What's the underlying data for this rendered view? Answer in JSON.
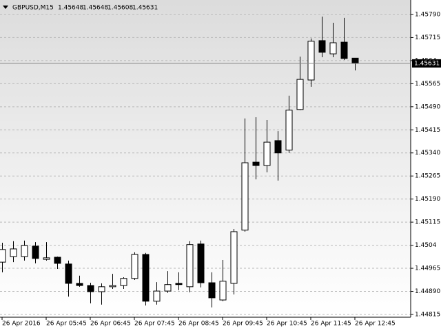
{
  "chart_data": {
    "type": "candlestick",
    "title": "GBPUSD,M15",
    "categories": [
      "26 Apr 2016",
      null,
      null,
      null,
      "26 Apr 05:45",
      null,
      null,
      null,
      "26 Apr 06:45",
      null,
      null,
      null,
      "26 Apr 07:45",
      null,
      null,
      null,
      "26 Apr 08:45",
      null,
      null,
      null,
      "26 Apr 09:45",
      null,
      null,
      null,
      "26 Apr 10:45",
      null,
      null,
      null,
      "26 Apr 11:45",
      null,
      null,
      null,
      "26 Apr 12:45"
    ],
    "open": [
      1.44985,
      1.45003,
      1.45003,
      1.45037,
      1.44994,
      1.45001,
      1.44979,
      1.44916,
      1.44909,
      1.44889,
      1.44905,
      1.44909,
      1.44932,
      1.4501,
      1.44858,
      1.44891,
      1.44916,
      1.44905,
      1.45044,
      1.44918,
      1.44862,
      1.44916,
      1.45089,
      1.4531,
      1.45299,
      1.4538,
      1.45349,
      1.45481,
      1.45577,
      1.45705,
      1.45662,
      1.457,
      1.45648
    ],
    "high": [
      1.45048,
      1.45053,
      1.45055,
      1.4505,
      1.4505,
      1.45003,
      1.4499,
      1.44941,
      1.44918,
      1.44916,
      1.44947,
      1.44936,
      1.45017,
      1.45015,
      1.4492,
      1.44956,
      1.44952,
      1.45053,
      1.45055,
      1.44952,
      1.44992,
      1.45093,
      1.45452,
      1.45456,
      1.45447,
      1.45411,
      1.45526,
      1.45653,
      1.45712,
      1.45783,
      1.45763,
      1.45779,
      1.45648
    ],
    "low": [
      1.44952,
      1.44985,
      1.4499,
      1.44981,
      1.4499,
      1.44963,
      1.44873,
      1.44905,
      1.44851,
      1.44847,
      1.44898,
      1.44898,
      1.44927,
      1.44844,
      1.44847,
      1.44885,
      1.44894,
      1.44887,
      1.44903,
      1.44838,
      1.44858,
      1.4488,
      1.45084,
      1.45254,
      1.45277,
      1.4525,
      1.4534,
      1.45479,
      1.45555,
      1.45651,
      1.45651,
      1.45642,
      1.45608
    ],
    "close": [
      1.45026,
      1.45028,
      1.45039,
      1.44997,
      1.44999,
      1.44981,
      1.44916,
      1.44909,
      1.44889,
      1.44905,
      1.44909,
      1.44932,
      1.4501,
      1.44858,
      1.44891,
      1.44912,
      1.44912,
      1.45042,
      1.44918,
      1.44869,
      1.44923,
      1.45084,
      1.45308,
      1.45299,
      1.45375,
      1.4534,
      1.45479,
      1.45579,
      1.45703,
      1.45667,
      1.45698,
      1.45647,
      1.45631
    ],
    "ylim": [
      1.44806,
      1.45837
    ],
    "yticks": [
      {
        "value": 1.4579,
        "label": "1.45790"
      },
      1.45715,
      1.4564,
      1.45565,
      {
        "value": 1.4549,
        "label": "1.45490"
      },
      1.45415,
      {
        "value": 1.4534,
        "label": "1.45340"
      },
      1.45265,
      {
        "value": 1.4519,
        "label": "1.45190"
      },
      1.45115,
      1.4504,
      1.44965,
      {
        "value": 1.4489,
        "label": "1.44890"
      },
      1.44815
    ],
    "grid": true,
    "up_color": "#ffffff",
    "down_color": "#000000"
  }
}
